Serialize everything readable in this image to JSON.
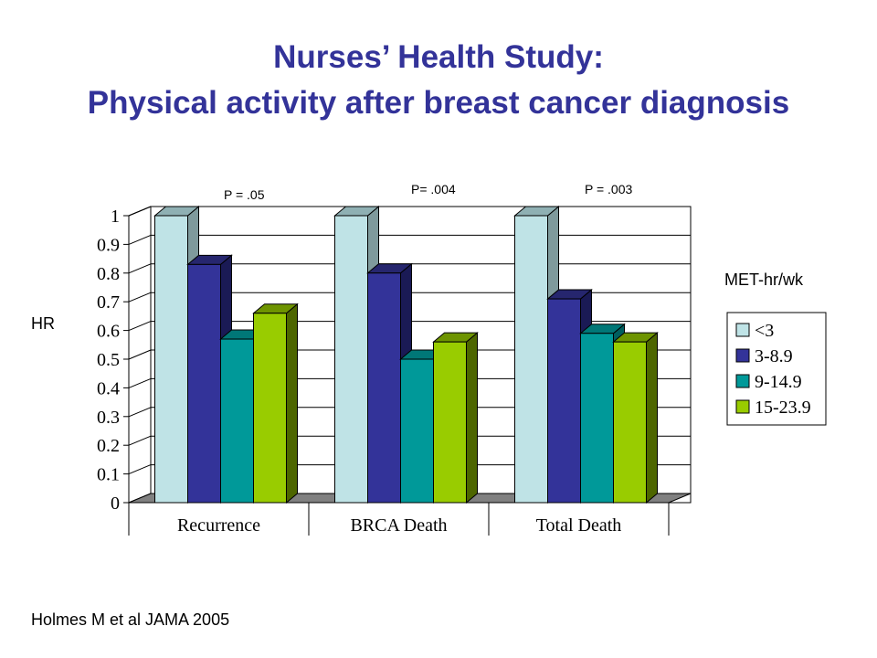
{
  "header": {
    "title_line1": "Nurses’ Health Study:",
    "title_line2": "Physical activity after breast cancer diagnosis"
  },
  "labels": {
    "y_axis": "HR",
    "legend_title": "MET-hr/wk",
    "citation": "Holmes M et al JAMA 2005"
  },
  "p_values": [
    "P = .05",
    "P= .004",
    "P = .003"
  ],
  "colors": {
    "title": "#333399",
    "series": [
      "#bfe3e6",
      "#333399",
      "#009999",
      "#99cc00"
    ],
    "series_side": [
      "#7f9a9c",
      "#1a1a55",
      "#005f5f",
      "#4d6600"
    ],
    "series_top": [
      "#8fb0b3",
      "#26266e",
      "#007777",
      "#6e9400"
    ],
    "floor": "#808080"
  },
  "chart_data": {
    "type": "bar",
    "categories": [
      "Recurrence",
      "BRCA Death",
      "Total Death"
    ],
    "series": [
      {
        "name": "<3",
        "values": [
          1.0,
          1.0,
          1.0
        ]
      },
      {
        "name": "3-8.9",
        "values": [
          0.83,
          0.8,
          0.71
        ]
      },
      {
        "name": "9-14.9",
        "values": [
          0.57,
          0.5,
          0.59
        ]
      },
      {
        "name": "15-23.9",
        "values": [
          0.66,
          0.56,
          0.56
        ]
      }
    ],
    "ylabel": "HR",
    "ylim": [
      0,
      1
    ],
    "yticks": [
      "0",
      "0.1",
      "0.2",
      "0.3",
      "0.4",
      "0.5",
      "0.6",
      "0.7",
      "0.8",
      "0.9",
      "1"
    ],
    "legend_title": "MET-hr/wk",
    "legend_position": "right",
    "grid": true,
    "style": "3d"
  }
}
